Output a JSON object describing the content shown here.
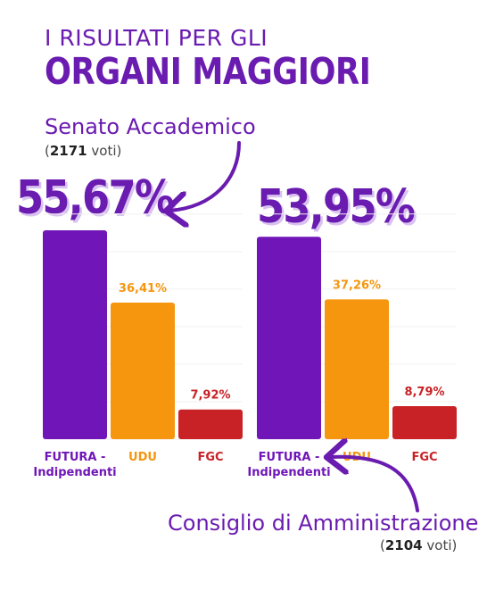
{
  "header": {
    "subtitle": "I RISULTATI PER GLI",
    "title": "ORGANI MAGGIORI"
  },
  "colors": {
    "purple": "#7016B8",
    "orange": "#F5960E",
    "red": "#C82226",
    "arrow": "#6A1BB0"
  },
  "chart_data": [
    {
      "type": "bar",
      "title": "Senato Accademico",
      "votes_count": "2171",
      "votes_word": "voti",
      "headline": "55,67%",
      "categories": [
        "FUTURA - Indipendenti",
        "UDU",
        "FGC"
      ],
      "values": [
        55.67,
        36.41,
        7.92
      ],
      "value_labels": [
        "",
        "36,41%",
        "7,92%"
      ],
      "ylim": [
        0,
        60
      ],
      "grid": true,
      "legend": "none"
    },
    {
      "type": "bar",
      "title": "Consiglio di Amministrazione",
      "votes_count": "2104",
      "votes_word": "voti",
      "headline": "53,95%",
      "categories": [
        "FUTURA - Indipendenti",
        "UDU",
        "FGC"
      ],
      "values": [
        53.95,
        37.26,
        8.79
      ],
      "value_labels": [
        "",
        "37,26%",
        "8,79%"
      ],
      "ylim": [
        0,
        60
      ],
      "grid": true,
      "legend": "none"
    }
  ]
}
